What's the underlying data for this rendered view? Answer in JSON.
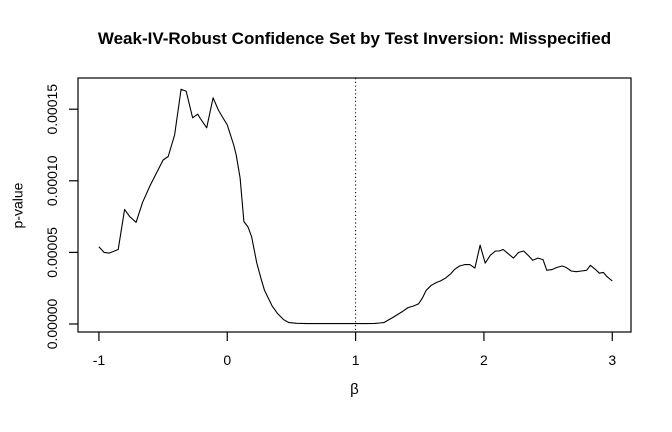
{
  "page": {
    "background": "#ffffff",
    "foreground": "#000000"
  },
  "chart_data": {
    "type": "line",
    "title": "Weak-IV-Robust Confidence Set by Test Inversion: Misspecified",
    "xlabel": "β",
    "ylabel": "p-value",
    "xlim": [
      -1.163,
      3.146
    ],
    "ylim": [
      -5.6e-06,
      0.0001718
    ],
    "x_ticks": [
      -1,
      0,
      1,
      2,
      3
    ],
    "x_tick_labels": [
      "-1",
      "0",
      "1",
      "2",
      "3"
    ],
    "y_ticks": [
      0,
      5e-05,
      0.0001,
      0.00015
    ],
    "y_tick_labels": [
      "0.00000",
      "0.00005",
      "0.00010",
      "0.00015"
    ],
    "grid": false,
    "legend_position": "none",
    "line_color": "#000000",
    "reference_line": {
      "x": 1,
      "style": "dotted",
      "color": "#000000"
    },
    "series": [
      {
        "name": "p-value curve",
        "x": [
          -1.0,
          -0.96,
          -0.92,
          -0.85,
          -0.8,
          -0.76,
          -0.71,
          -0.66,
          -0.6,
          -0.56,
          -0.5,
          -0.46,
          -0.41,
          -0.36,
          -0.32,
          -0.27,
          -0.23,
          -0.21,
          -0.16,
          -0.11,
          -0.07,
          -0.04,
          0.0,
          0.05,
          0.07,
          0.1,
          0.13,
          0.16,
          0.19,
          0.23,
          0.27,
          0.29,
          0.35,
          0.39,
          0.44,
          0.48,
          0.54,
          0.62,
          0.7,
          0.8,
          0.9,
          1.0,
          1.08,
          1.15,
          1.22,
          1.29,
          1.37,
          1.41,
          1.45,
          1.49,
          1.52,
          1.55,
          1.59,
          1.63,
          1.66,
          1.7,
          1.74,
          1.77,
          1.81,
          1.85,
          1.89,
          1.93,
          1.97,
          2.01,
          2.05,
          2.09,
          2.12,
          2.15,
          2.19,
          2.23,
          2.27,
          2.31,
          2.35,
          2.38,
          2.42,
          2.46,
          2.49,
          2.53,
          2.57,
          2.61,
          2.64,
          2.68,
          2.72,
          2.76,
          2.8,
          2.83,
          2.87,
          2.9,
          2.93,
          2.96,
          3.0
        ],
        "y": [
          5.4e-05,
          5e-05,
          4.95e-05,
          5.2e-05,
          8e-05,
          7.5e-05,
          7.1e-05,
          8.5e-05,
          9.7e-05,
          0.000104,
          0.0001145,
          0.000117,
          0.000132,
          0.000164,
          0.0001625,
          0.000144,
          0.0001465,
          0.0001435,
          0.000137,
          0.000158,
          0.0001495,
          0.000145,
          0.000139,
          0.000125,
          0.000118,
          0.000102,
          7.15e-05,
          6.8e-05,
          6.1e-05,
          4.25e-05,
          2.95e-05,
          2.35e-05,
          1.25e-05,
          7.5e-06,
          3e-06,
          1e-06,
          5e-07,
          3e-07,
          3e-07,
          3e-07,
          3e-07,
          3e-07,
          3e-07,
          4e-07,
          1e-06,
          4.5e-06,
          9e-06,
          1.15e-05,
          1.25e-05,
          1.4e-05,
          1.8e-05,
          2.35e-05,
          2.7e-05,
          2.9e-05,
          3e-05,
          3.2e-05,
          3.5e-05,
          3.8e-05,
          4.05e-05,
          4.15e-05,
          4.15e-05,
          3.9e-05,
          5.5e-05,
          4.25e-05,
          4.8e-05,
          5.1e-05,
          5.1e-05,
          5.2e-05,
          4.9e-05,
          4.6e-05,
          5e-05,
          5.1e-05,
          4.75e-05,
          4.45e-05,
          4.6e-05,
          4.5e-05,
          3.75e-05,
          3.8e-05,
          3.95e-05,
          4.05e-05,
          3.95e-05,
          3.7e-05,
          3.65e-05,
          3.7e-05,
          3.75e-05,
          4.1e-05,
          3.8e-05,
          3.55e-05,
          3.6e-05,
          3.3e-05,
          3e-05
        ]
      }
    ]
  }
}
